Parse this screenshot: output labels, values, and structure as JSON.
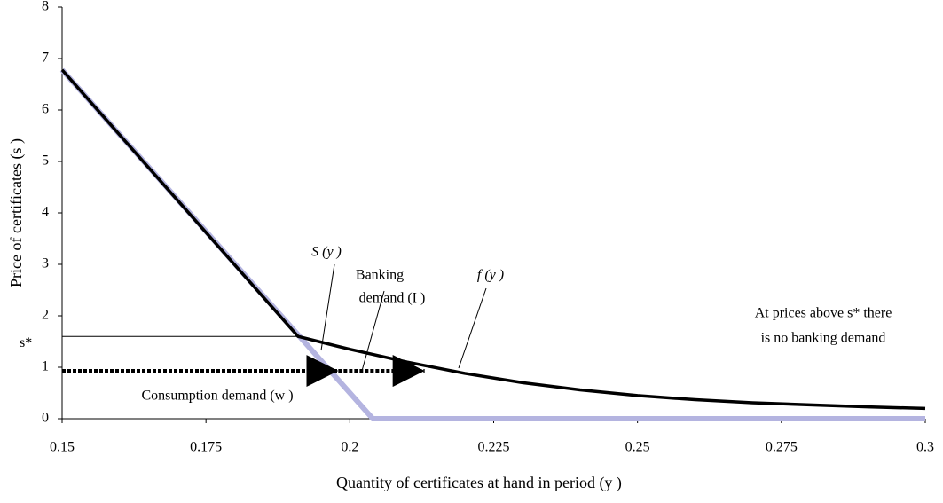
{
  "chart_data": {
    "type": "line",
    "x_label": "Quantity of certificates at hand in period (y )",
    "y_label": "Price of certificates (s )",
    "xlim": [
      0.15,
      0.3
    ],
    "xticks": [
      0.15,
      0.175,
      0.2,
      0.225,
      0.25,
      0.275,
      0.3
    ],
    "ylim": [
      0,
      8
    ],
    "yticks": [
      0,
      1,
      2,
      3,
      4,
      5,
      6,
      7,
      8
    ],
    "series": [
      {
        "name": "S (y )",
        "color": "#b4b4e0",
        "x": [
          0.15,
          0.204,
          0.3
        ],
        "values": [
          6.78,
          0,
          0
        ]
      },
      {
        "name": "f (y )",
        "color": "#000000",
        "x": [
          0.15,
          0.191,
          0.2,
          0.21,
          0.22,
          0.23,
          0.24,
          0.25,
          0.26,
          0.27,
          0.28,
          0.29,
          0.3
        ],
        "values": [
          6.78,
          1.6,
          1.35,
          1.1,
          0.88,
          0.7,
          0.56,
          0.45,
          0.37,
          0.31,
          0.27,
          0.23,
          0.2
        ]
      }
    ],
    "reference_line": {
      "label": "s*",
      "y": 1.6,
      "x": [
        0.15,
        0.191
      ]
    },
    "arrows": [
      {
        "y": 0.93,
        "x": [
          0.15,
          0.198
        ]
      },
      {
        "y": 0.93,
        "x": [
          0.198,
          0.213
        ]
      }
    ],
    "annotations": [
      "Banking",
      "demand (I )",
      "At prices above s* there",
      "is no banking demand",
      "Consumption demand (w )"
    ]
  }
}
